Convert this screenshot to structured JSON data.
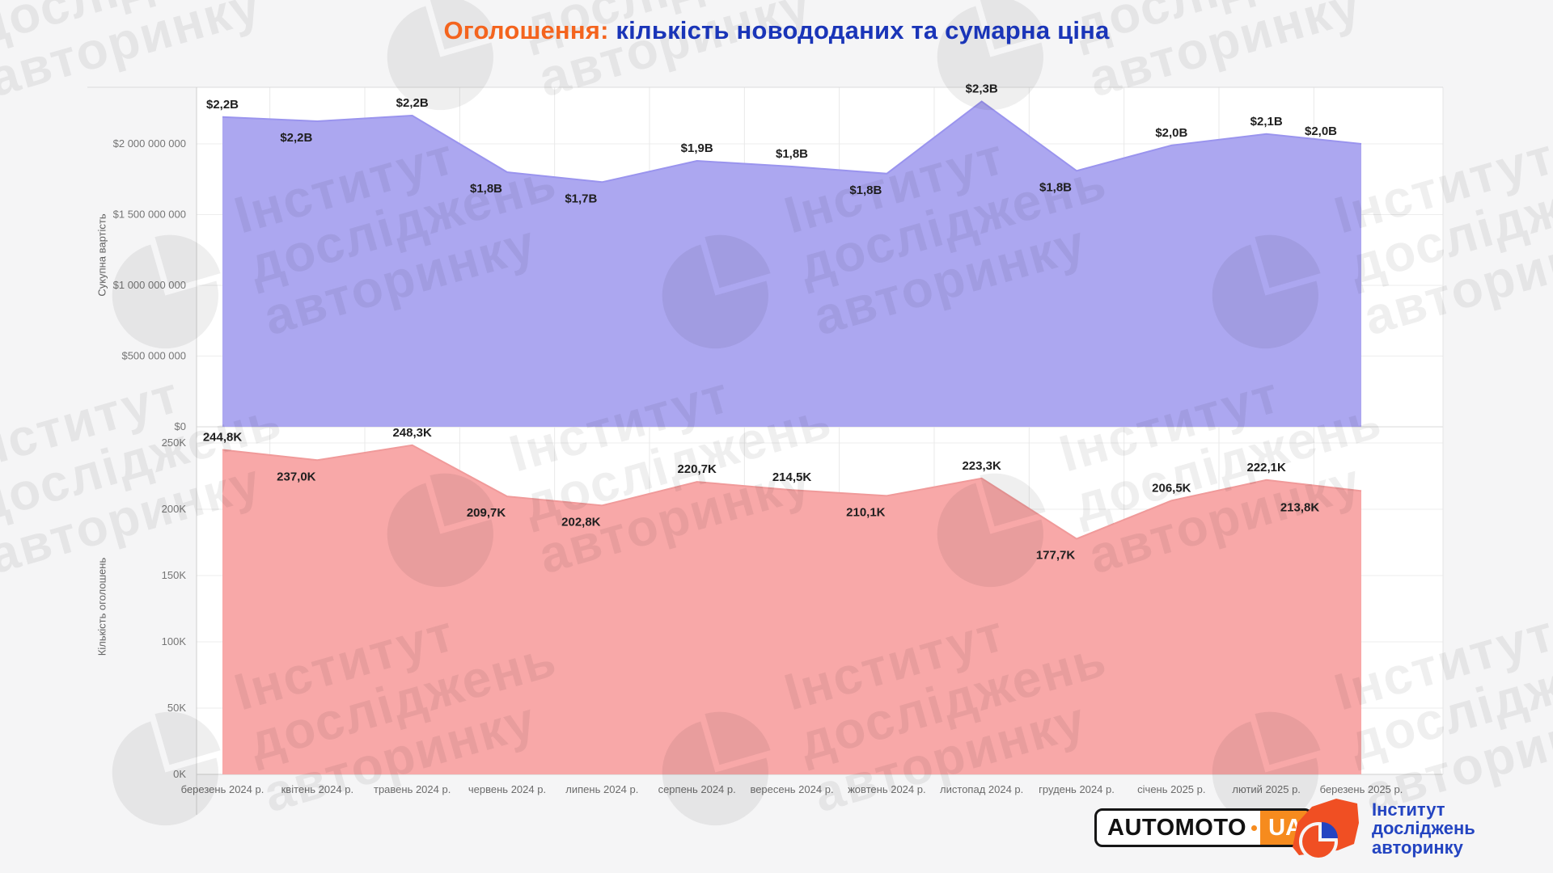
{
  "page": {
    "background": "#f5f5f6",
    "title": {
      "highlight": "Оголошення:",
      "rest": " кількість новододаних та сумарна ціна",
      "highlight_color": "#F4641E",
      "rest_color": "#1A35B8"
    }
  },
  "watermark": {
    "text_lines": [
      "Інститут",
      "досліджень",
      "авторинку"
    ]
  },
  "chart_data": [
    {
      "type": "area",
      "ylabel": "Сукупна вартість",
      "unit": "USD",
      "categories": [
        "березень 2024 р.",
        "квітень 2024 р.",
        "травень 2024 р.",
        "червень 2024 р.",
        "липень 2024 р.",
        "серпень 2024 р.",
        "вересень 2024 р.",
        "жовтень 2024 р.",
        "листопад 2024 р.",
        "грудень 2024 р.",
        "січень 2025 р.",
        "лютий 2025 р.",
        "березень 2025 р."
      ],
      "values": [
        2190000000,
        2160000000,
        2200000000,
        1800000000,
        1730000000,
        1880000000,
        1840000000,
        1790000000,
        2300000000,
        1810000000,
        1990000000,
        2070000000,
        2000000000
      ],
      "point_labels": [
        "$2,2B",
        "$2,2B",
        "$2,2B",
        "$1,8B",
        "$1,7B",
        "$1,9B",
        "$1,8B",
        "$1,8B",
        "$2,3B",
        "$1,8B",
        "$2,0B",
        "$2,1B",
        "$2,0B"
      ],
      "label_side": [
        "above",
        "below",
        "above",
        "below",
        "below",
        "above",
        "above",
        "below",
        "above",
        "below",
        "above",
        "above",
        "above"
      ],
      "y_ticks": [
        "$2 000 000 000",
        "$1 500 000 000",
        "$1 000 000 000",
        "$500 000 000",
        "$0"
      ],
      "y_tick_values": [
        2000000000,
        1500000000,
        1000000000,
        500000000,
        0
      ],
      "ylim": [
        0,
        2390000000
      ],
      "grid": true,
      "legend": false,
      "fill_color": "#ACA7F0",
      "edge_color": "#9A94EE"
    },
    {
      "type": "area",
      "ylabel": "Кількість оголошень",
      "unit": "listings",
      "categories": [
        "березень 2024 р.",
        "квітень 2024 р.",
        "травень 2024 р.",
        "червень 2024 р.",
        "липень 2024 р.",
        "серпень 2024 р.",
        "вересень 2024 р.",
        "жовтень 2024 р.",
        "листопад 2024 р.",
        "грудень 2024 р.",
        "січень 2025 р.",
        "лютий 2025 р.",
        "березень 2025 р."
      ],
      "values": [
        244800,
        237000,
        248300,
        209700,
        202800,
        220700,
        214500,
        210100,
        223300,
        177700,
        206500,
        222100,
        213800
      ],
      "point_labels": [
        "244,8K",
        "237,0K",
        "248,3K",
        "209,7K",
        "202,8K",
        "220,7K",
        "214,5K",
        "210,1K",
        "223,3K",
        "177,7K",
        "206,5K",
        "222,1K",
        "213,8K"
      ],
      "label_side": [
        "above",
        "below",
        "above",
        "below",
        "below",
        "above",
        "above",
        "below",
        "above",
        "below",
        "above",
        "above",
        "below"
      ],
      "y_ticks": [
        "250K",
        "200K",
        "150K",
        "100K",
        "50K",
        "0K"
      ],
      "y_tick_values": [
        250000,
        200000,
        150000,
        100000,
        50000,
        0
      ],
      "ylim": [
        0,
        262000
      ],
      "grid": true,
      "legend": false,
      "fill_color": "#F8A8A8",
      "edge_color": "#F09A9A"
    }
  ],
  "footer": {
    "plate": {
      "name": "AUTOMOTO",
      "suffix": "UA",
      "plate_orange": "#F68B1E"
    },
    "institute": {
      "lines": [
        "Інститут",
        "досліджень",
        "авторинку"
      ],
      "text_color": "#2344C1",
      "icon_orange": "#F04F23",
      "icon_blue": "#2344C1"
    }
  }
}
